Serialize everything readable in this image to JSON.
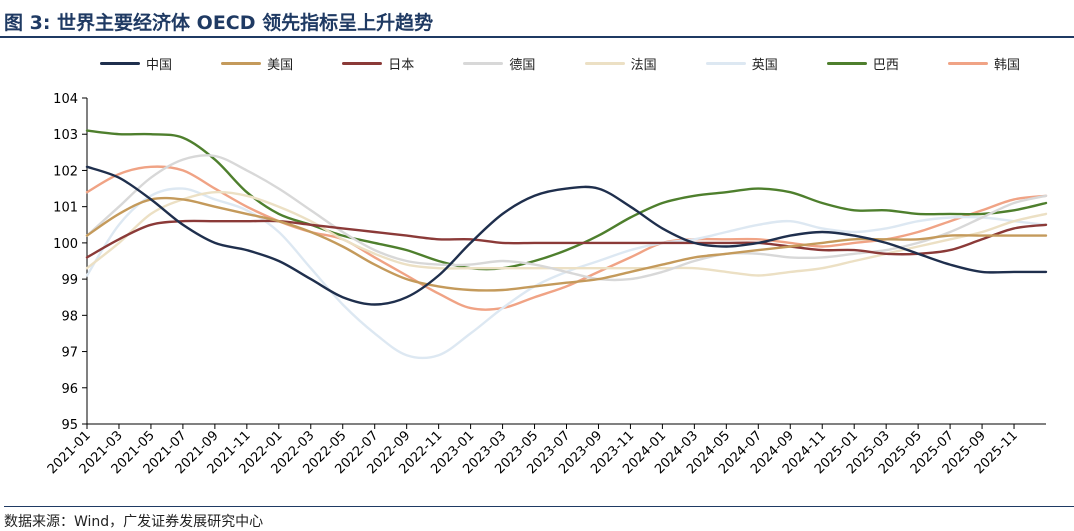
{
  "header": {
    "title": "图 3: 世界主要经济体 OECD 领先指标呈上升趋势"
  },
  "footer": {
    "source": "数据来源：Wind，广发证券发展研究中心"
  },
  "chart_data": {
    "type": "line",
    "title": "",
    "xlabel": "",
    "ylabel": "",
    "ylim": [
      95,
      104
    ],
    "yticks": [
      95,
      96,
      97,
      98,
      99,
      100,
      101,
      102,
      103,
      104
    ],
    "x": [
      "2021-01",
      "2021-03",
      "2021-05",
      "2021-07",
      "2021-09",
      "2021-11",
      "2022-01",
      "2022-03",
      "2022-05",
      "2022-07",
      "2022-09",
      "2022-11",
      "2023-01",
      "2023-03",
      "2023-05",
      "2023-07",
      "2023-09",
      "2023-11",
      "2024-01",
      "2024-03",
      "2024-05",
      "2024-07",
      "2024-09",
      "2024-11",
      "2025-01",
      "2025-03",
      "2025-05",
      "2025-07",
      "2025-09",
      "2025-11",
      "2025-12"
    ],
    "xtick_labels": [
      "2021-01",
      "2021-03",
      "2021-05",
      "2021-07",
      "2021-09",
      "2021-11",
      "2022-01",
      "2022-03",
      "2022-05",
      "2022-07",
      "2022-09",
      "2022-11",
      "2023-01",
      "2023-03",
      "2023-05",
      "2023-07",
      "2023-09",
      "2023-11",
      "2024-01",
      "2024-03",
      "2024-05",
      "2024-07",
      "2024-09",
      "2024-11",
      "2025-01",
      "2025-03",
      "2025-05",
      "2025-07",
      "2025-09",
      "2025-11"
    ],
    "legend_position": "top",
    "grid": false,
    "series": [
      {
        "name": "中国",
        "color": "#1f2f4d",
        "values": [
          102.1,
          101.8,
          101.2,
          100.5,
          100.0,
          99.8,
          99.5,
          99.0,
          98.5,
          98.3,
          98.5,
          99.1,
          100.0,
          100.8,
          101.3,
          101.5,
          101.5,
          101.0,
          100.4,
          100.0,
          99.9,
          100.0,
          100.2,
          100.3,
          100.2,
          100.0,
          99.7,
          99.4,
          99.2,
          99.2,
          99.2
        ]
      },
      {
        "name": "美国",
        "color": "#c49a5b",
        "values": [
          100.2,
          100.8,
          101.2,
          101.2,
          101.0,
          100.8,
          100.6,
          100.3,
          99.9,
          99.4,
          99.0,
          98.8,
          98.7,
          98.7,
          98.8,
          98.9,
          99.0,
          99.2,
          99.4,
          99.6,
          99.7,
          99.8,
          99.9,
          100.0,
          100.1,
          100.1,
          100.1,
          100.2,
          100.2,
          100.2,
          100.2
        ]
      },
      {
        "name": "日本",
        "color": "#8b3a38",
        "values": [
          99.6,
          100.1,
          100.5,
          100.6,
          100.6,
          100.6,
          100.6,
          100.5,
          100.4,
          100.3,
          100.2,
          100.1,
          100.1,
          100.0,
          100.0,
          100.0,
          100.0,
          100.0,
          100.0,
          100.0,
          100.0,
          100.0,
          99.9,
          99.8,
          99.8,
          99.7,
          99.7,
          99.8,
          100.1,
          100.4,
          100.5
        ]
      },
      {
        "name": "德国",
        "color": "#d8d8d8",
        "values": [
          100.2,
          101.0,
          101.8,
          102.3,
          102.4,
          102.0,
          101.5,
          100.9,
          100.3,
          99.8,
          99.5,
          99.4,
          99.4,
          99.5,
          99.4,
          99.2,
          99.0,
          99.0,
          99.2,
          99.5,
          99.7,
          99.7,
          99.6,
          99.6,
          99.7,
          99.8,
          100.0,
          100.3,
          100.7,
          101.1,
          101.3
        ]
      },
      {
        "name": "法国",
        "color": "#ece0c4",
        "values": [
          99.3,
          100.0,
          100.8,
          101.2,
          101.4,
          101.3,
          101.0,
          100.6,
          100.1,
          99.7,
          99.4,
          99.3,
          99.3,
          99.3,
          99.3,
          99.3,
          99.3,
          99.3,
          99.3,
          99.3,
          99.2,
          99.1,
          99.2,
          99.3,
          99.5,
          99.7,
          99.9,
          100.1,
          100.3,
          100.6,
          100.8
        ]
      },
      {
        "name": "英国",
        "color": "#dde8f2",
        "values": [
          99.1,
          100.5,
          101.3,
          101.5,
          101.2,
          100.9,
          100.3,
          99.3,
          98.3,
          97.5,
          96.9,
          96.9,
          97.5,
          98.2,
          98.8,
          99.2,
          99.5,
          99.8,
          100.0,
          100.1,
          100.3,
          100.5,
          100.6,
          100.4,
          100.3,
          100.4,
          100.6,
          100.7,
          100.7,
          100.6,
          100.5
        ]
      },
      {
        "name": "巴西",
        "color": "#4e7f2d",
        "values": [
          103.1,
          103.0,
          103.0,
          102.9,
          102.3,
          101.4,
          100.8,
          100.5,
          100.2,
          100.0,
          99.8,
          99.5,
          99.3,
          99.3,
          99.5,
          99.8,
          100.2,
          100.7,
          101.1,
          101.3,
          101.4,
          101.5,
          101.4,
          101.1,
          100.9,
          100.9,
          100.8,
          100.8,
          100.8,
          100.9,
          101.1
        ]
      },
      {
        "name": "韩国",
        "color": "#f0a385",
        "values": [
          101.4,
          101.9,
          102.1,
          102.0,
          101.5,
          101.0,
          100.6,
          100.3,
          100.1,
          99.6,
          99.1,
          98.6,
          98.2,
          98.2,
          98.5,
          98.8,
          99.2,
          99.6,
          100.0,
          100.1,
          100.1,
          100.1,
          100.0,
          99.9,
          100.0,
          100.1,
          100.3,
          100.6,
          100.9,
          101.2,
          101.3
        ]
      }
    ]
  }
}
